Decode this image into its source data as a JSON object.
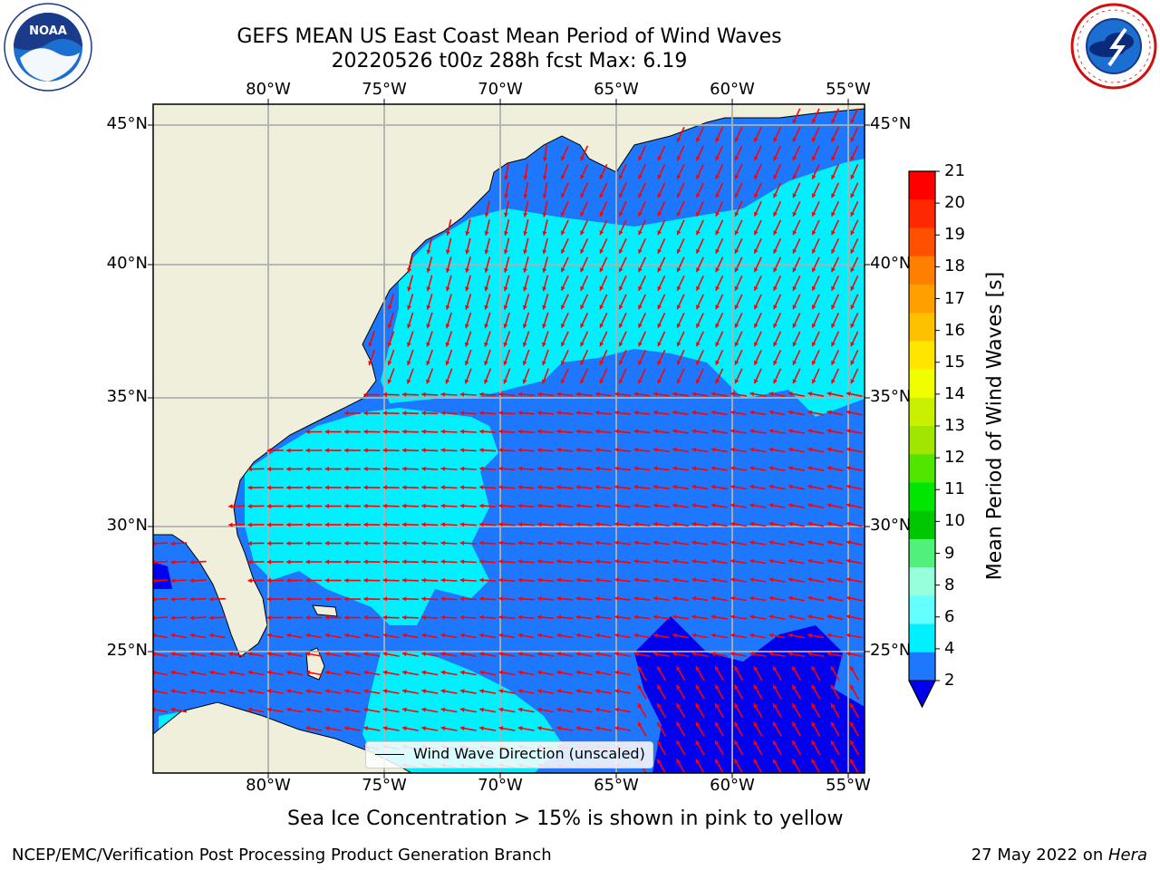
{
  "title": {
    "line1": "GEFS MEAN US East Coast Mean Period of Wind Waves",
    "line2": "20220526 t00z 288h fcst   Max: 6.19"
  },
  "map": {
    "lon_labels": [
      "80°W",
      "75°W",
      "70°W",
      "65°W",
      "60°W",
      "55°W"
    ],
    "lat_labels": [
      "45°N",
      "40°N",
      "35°N",
      "30°N",
      "25°N"
    ],
    "colors": {
      "land": "#efefdc",
      "ocean_low": "#0000ee",
      "ocean_2_4": "#1e78ff",
      "ocean_4_6": "#00f0ff",
      "grid": "#b0b0b0",
      "arrow": "#ff0000"
    },
    "legend": {
      "label": "Wind Wave Direction (unscaled)"
    }
  },
  "colorbar": {
    "ticks": [
      "21",
      "20",
      "19",
      "18",
      "17",
      "16",
      "15",
      "14",
      "13",
      "12",
      "11",
      "10",
      "9",
      "8",
      "6",
      "4",
      "2"
    ],
    "colors": [
      "#ff0000",
      "#ff2800",
      "#ff5000",
      "#ff8000",
      "#ffa000",
      "#ffc000",
      "#ffe600",
      "#f0ff00",
      "#c8f000",
      "#a0e600",
      "#50e600",
      "#00e600",
      "#00c800",
      "#50f07a",
      "#96ffdc",
      "#64ffff",
      "#00f0ff",
      "#1e78ff"
    ],
    "extend_color": "#0000ee",
    "label": "Mean Period of Wind Waves [s]"
  },
  "subtitle": "Sea Ice Concentration > 15% is shown in pink to yellow",
  "footer": {
    "left": "NCEP/EMC/Verification Post Processing Product Generation Branch",
    "right_prefix": "27 May 2022 on ",
    "right_host": "Hera"
  },
  "logos": {
    "noaa_text": "NOAA",
    "nws_text": "NATIONAL WEATHER SERVICE"
  }
}
